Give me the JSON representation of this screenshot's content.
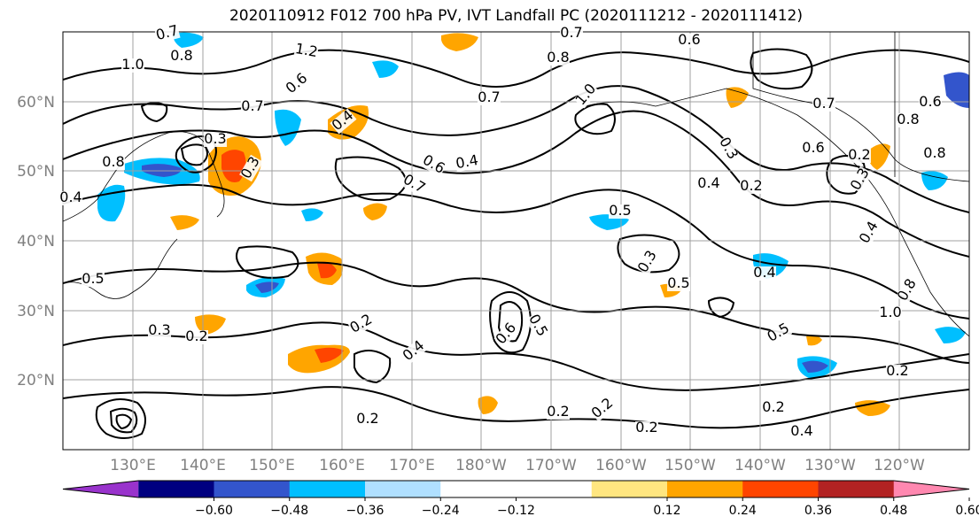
{
  "title": "2020110912 F012 700 hPa PV, IVT Landfall PC (2020111212 - 2020111412)",
  "lat_labels": [
    "60°N",
    "50°N",
    "40°N",
    "30°N",
    "20°N"
  ],
  "lon_labels": [
    "130°E",
    "140°E",
    "150°E",
    "160°E",
    "170°E",
    "180°W",
    "170°W",
    "160°W",
    "150°W",
    "140°W",
    "130°W",
    "120°W"
  ],
  "colorbar": {
    "colors": [
      "#9933cc",
      "#000080",
      "#3355cc",
      "#00bfff",
      "#b0e0ff",
      "#ffffff",
      "#ffffff",
      "#ffe680",
      "#ffa500",
      "#ff4500",
      "#b22222",
      "#ff88b0"
    ],
    "tick_labels": [
      "−0.60",
      "−0.48",
      "−0.36",
      "−0.24",
      "−0.12",
      "0.12",
      "0.24",
      "0.36",
      "0.48",
      "0.60"
    ]
  },
  "contour_labels": [
    "0.7",
    "0.8",
    "1.0",
    "1.2",
    "0.6",
    "0.7",
    "0.8",
    "1.0",
    "0.6",
    "0.7",
    "0.7",
    "0.3",
    "0.8",
    "0.4",
    "0.6",
    "0.4",
    "0.7",
    "0.5",
    "0.3",
    "0.4",
    "0.2",
    "0.3",
    "0.5",
    "0.3",
    "0.4",
    "0.3",
    "0.2",
    "0.4",
    "0.6",
    "0.5",
    "0.2",
    "0.2",
    "0.2",
    "0.2",
    "0.2",
    "0.2",
    "0.4",
    "0.2",
    "0.5",
    "0.5",
    "0.4",
    "1.0",
    "0.8",
    "0.6",
    "0.4",
    "0.3",
    "0.2",
    "0.8",
    "0.7",
    "0.6",
    "0.8"
  ]
}
